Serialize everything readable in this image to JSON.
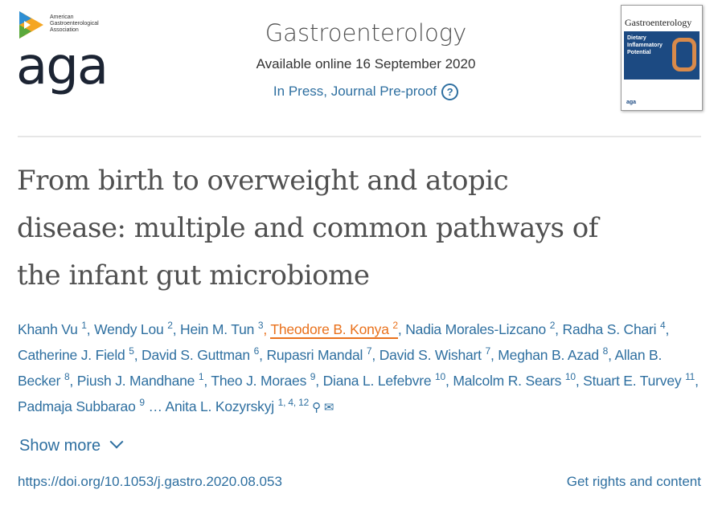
{
  "logo": {
    "small": "American Gastroenterological Association",
    "big": "aga"
  },
  "journal": {
    "name": "Gastroenterology",
    "available": "Available online 16 September 2020",
    "status": "In Press, Journal Pre-proof",
    "help_icon": "question-circle-icon"
  },
  "cover": {
    "title": "Gastroenterology",
    "headline": "Dietary Inflammatory Potential",
    "footer": "aga"
  },
  "title_lines": [
    "From birth to overweight and atopic",
    "disease: multiple and common pathways of",
    "the infant gut microbiome"
  ],
  "authors": [
    {
      "name": "Khanh Vu",
      "sup": "1"
    },
    {
      "name": "Wendy Lou",
      "sup": "2"
    },
    {
      "name": "Hein M. Tun",
      "sup": "3"
    },
    {
      "name": "Theodore B. Konya",
      "sup": "2",
      "highlight": true
    },
    {
      "name": "Nadia Morales-Lizcano",
      "sup": "2"
    },
    {
      "name": "Radha S. Chari",
      "sup": "4"
    },
    {
      "name": "Catherine J. Field",
      "sup": "5"
    },
    {
      "name": "David S. Guttman",
      "sup": "6"
    },
    {
      "name": "Rupasri Mandal",
      "sup": "7"
    },
    {
      "name": "David S. Wishart",
      "sup": "7"
    },
    {
      "name": "Meghan B. Azad",
      "sup": "8"
    },
    {
      "name": "Allan B. Becker",
      "sup": "8"
    },
    {
      "name": "Piush J. Mandhane",
      "sup": "1"
    },
    {
      "name": "Theo J. Moraes",
      "sup": "9"
    },
    {
      "name": "Diana L. Lefebvre",
      "sup": "10"
    },
    {
      "name": "Malcolm R. Sears",
      "sup": "10"
    },
    {
      "name": "Stuart E. Turvey",
      "sup": "11"
    },
    {
      "name": "Padmaja Subbarao",
      "sup": "9"
    },
    {
      "name": "Anita L. Kozyrskyj",
      "sup": "1, 4, 12"
    }
  ],
  "ellipsis": "…",
  "show_more": "Show more",
  "doi": "https://doi.org/10.1053/j.gastro.2020.08.053",
  "rights": "Get rights and content",
  "colors": {
    "link": "#2e6fa0",
    "highlight": "#e9711c",
    "title": "#505050"
  }
}
